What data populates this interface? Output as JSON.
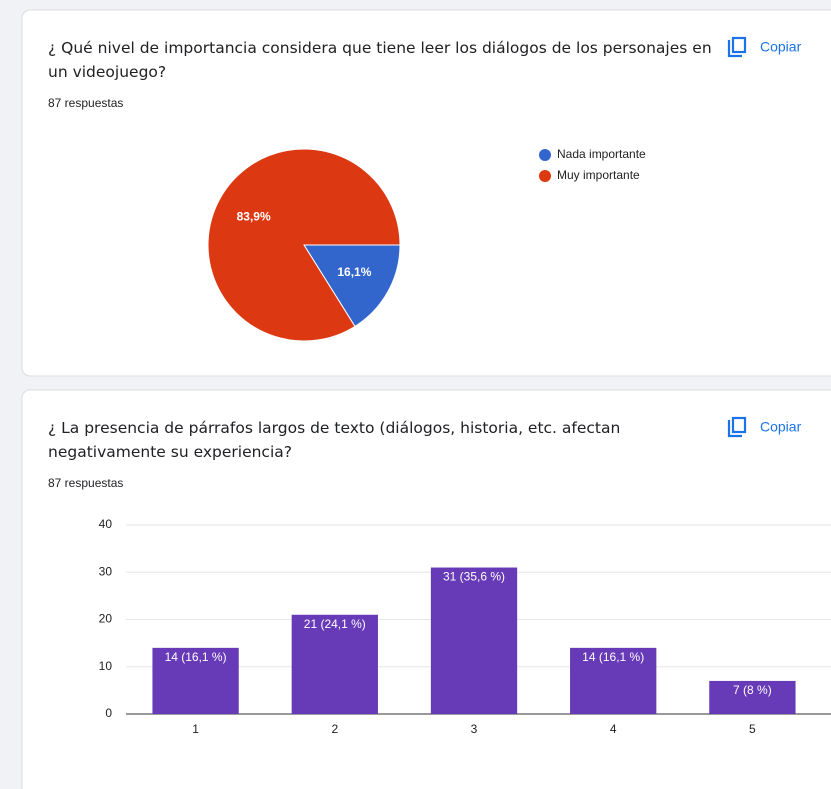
{
  "chart_data": [
    {
      "type": "pie",
      "title": "¿ Qué nivel de importancia considera que tiene leer los diálogos de los personajes en un videojuego?",
      "subtitle": "87 respuestas",
      "button": "Copiar",
      "categories": [
        "Nada importante",
        "Muy importante"
      ],
      "values": [
        16.1,
        83.9
      ],
      "value_labels": [
        "16,1%",
        "83,9%"
      ],
      "colors": [
        "#3366cc",
        "#dc3912"
      ],
      "legend": "right"
    },
    {
      "type": "bar",
      "title": "¿ La presencia de párrafos largos de texto (diálogos, historia, etc. afectan negativamente su experiencia?",
      "subtitle": "87 respuestas",
      "button": "Copiar",
      "categories": [
        "1",
        "2",
        "3",
        "4",
        "5"
      ],
      "values": [
        14,
        21,
        31,
        14,
        7
      ],
      "value_labels": [
        "14 (16,1 %)",
        "21 (24,1 %)",
        "31 (35,6 %)",
        "14 (16,1 %)",
        "7 (8 %)"
      ],
      "color": "#673ab7",
      "ylim": [
        0,
        40
      ],
      "yticks": [
        0,
        10,
        20,
        30,
        40
      ],
      "grid": true
    }
  ]
}
